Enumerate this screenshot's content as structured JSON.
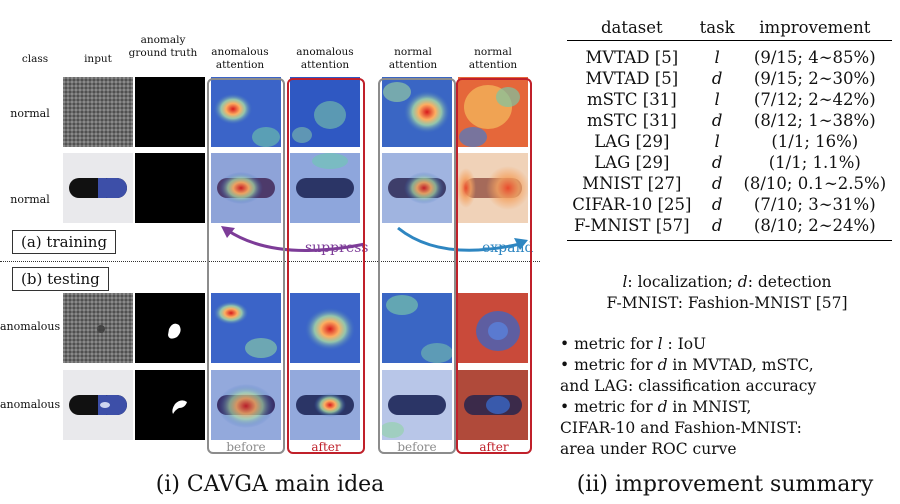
{
  "left_panel": {
    "headers": {
      "class": "class",
      "input": "input",
      "ground_truth": "anomaly ground truth",
      "anom_att_1": "anomalous attention",
      "anom_att_2": "anomalous attention",
      "norm_att_1": "normal attention",
      "norm_att_2": "normal attention"
    },
    "rows": [
      {
        "class_label": "normal"
      },
      {
        "class_label": "normal"
      },
      {
        "class_label": "anomalous"
      },
      {
        "class_label": "anomalous"
      }
    ],
    "phase_training": "(a)  training",
    "phase_testing": "(b)  testing",
    "suppress": "suppress",
    "expand": "expand",
    "before_1": "before",
    "after_1": "after",
    "before_2": "before",
    "after_2": "after",
    "caption": "(i) CAVGA main idea",
    "colors": {
      "gray_frame": "#8c8c8c",
      "red_frame": "#c0202a",
      "suppress": "#7d3c98",
      "expand": "#2e86c1"
    }
  },
  "right_panel": {
    "table": {
      "headers": {
        "dataset": "dataset",
        "task": "task",
        "improvement": "improvement"
      },
      "rows": [
        {
          "dataset": "MVTAD [5]",
          "task": "l",
          "improvement": "(9/15; 4∼85%)"
        },
        {
          "dataset": "MVTAD [5]",
          "task": "d",
          "improvement": "(9/15; 2∼30%)"
        },
        {
          "dataset": "mSTC [31]",
          "task": "l",
          "improvement": "(7/12; 2∼42%)"
        },
        {
          "dataset": "mSTC [31]",
          "task": "d",
          "improvement": "(8/12; 1∼38%)"
        },
        {
          "dataset": "LAG [29]",
          "task": "l",
          "improvement": "(1/1; 16%)"
        },
        {
          "dataset": "LAG [29]",
          "task": "d",
          "improvement": "(1/1; 1.1%)"
        },
        {
          "dataset": "MNIST [27]",
          "task": "d",
          "improvement": "(8/10; 0.1∼2.5%)"
        },
        {
          "dataset": "CIFAR-10 [25]",
          "task": "d",
          "improvement": "(7/10; 3∼31%)"
        },
        {
          "dataset": "F-MNIST [57]",
          "task": "d",
          "improvement": "(8/10; 2∼24%)"
        }
      ]
    },
    "legend_l": "l",
    "legend_l_text": ": localization; ",
    "legend_d": "d",
    "legend_d_text": ": detection",
    "legend_fmnist": "F-MNIST: Fashion-MNIST [57]",
    "bullets": {
      "b1_pre": "• metric for ",
      "b1_var": "l",
      "b1_post": " : IoU",
      "b2_pre": "• metric for ",
      "b2_var": "d",
      "b2_post": " in MVTAD, mSTC,",
      "b2_line2": "and LAG: classification accuracy",
      "b3_pre": "• metric for ",
      "b3_var": "d",
      "b3_post": " in MNIST,",
      "b3_line2": "CIFAR-10 and Fashion-MNIST:",
      "b3_line3": "area under ROC curve"
    },
    "caption": "(ii) improvement summary"
  }
}
